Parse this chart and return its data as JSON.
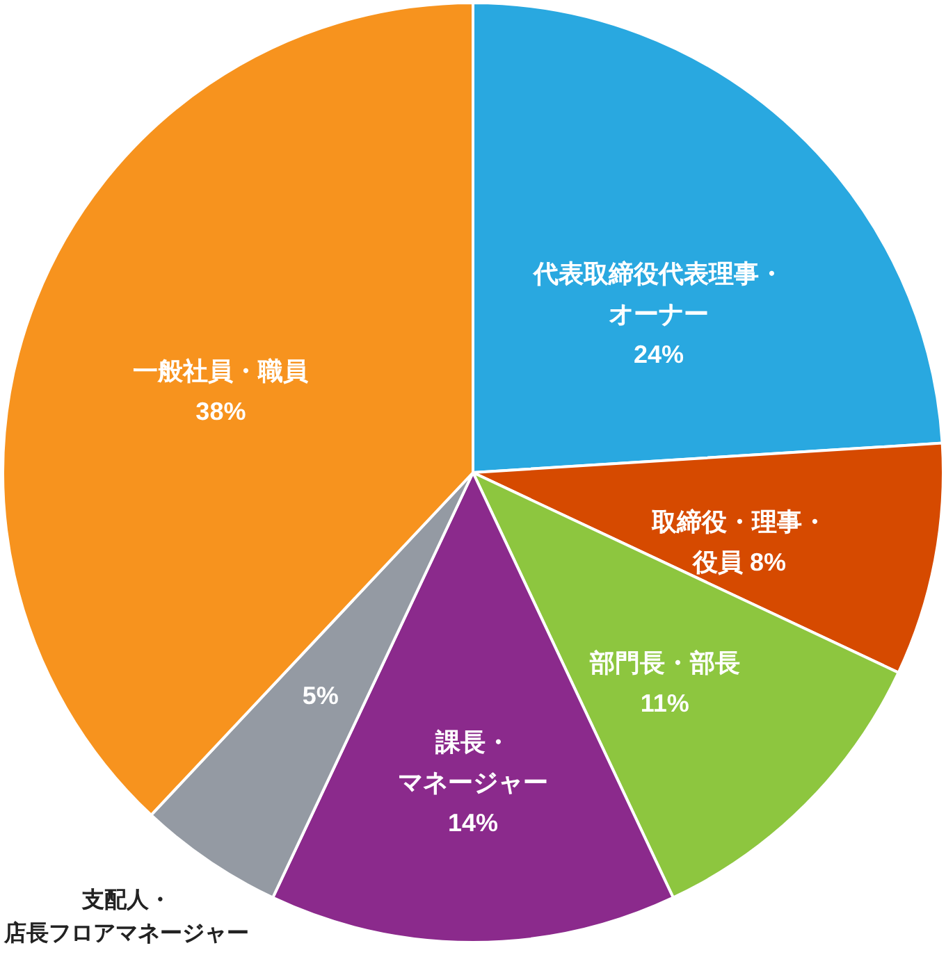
{
  "chart_data": {
    "type": "pie",
    "categories": [
      "代表取締役代表理事・オーナー",
      "取締役・理事・役員",
      "部門長・部長",
      "課長・マネージャー",
      "支配人・店長フロアマネージャー",
      "一般社員・職員"
    ],
    "values": [
      24,
      8,
      11,
      14,
      5,
      38
    ],
    "value_labels": [
      "24%",
      "8%",
      "11%",
      "14%",
      "5%",
      "38%"
    ],
    "colors": [
      "#29a8e0",
      "#d64a00",
      "#8dc63f",
      "#8b2a8c",
      "#949aa3",
      "#f7931e"
    ]
  }
}
